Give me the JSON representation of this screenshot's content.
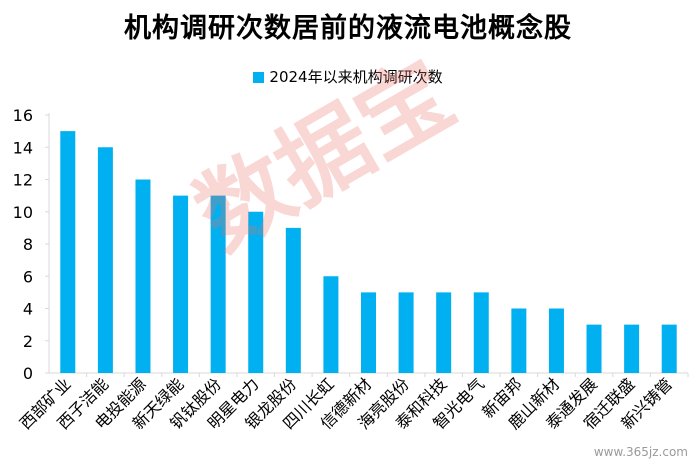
{
  "title": "机构调研次数居前的液流电池概念股",
  "watermark": "数据宝",
  "site": "www.365jz.com",
  "colors": {
    "bar": "#00b0f0",
    "axis": "#d9d9d9",
    "text": "#000000"
  },
  "chart_data": {
    "type": "bar",
    "title": "机构调研次数居前的液流电池概念股",
    "legend_position": "top",
    "grid": false,
    "ylim": [
      0,
      16
    ],
    "yticks": [
      0,
      2,
      4,
      6,
      8,
      10,
      12,
      14,
      16
    ],
    "categories": [
      "西部矿业",
      "西子洁能",
      "电投能源",
      "新天绿能",
      "钒钛股份",
      "明星电力",
      "银龙股份",
      "四川长虹",
      "信德新材",
      "海亮股份",
      "泰和科技",
      "智光电气",
      "新宙邦",
      "鹿山新材",
      "泰通发展",
      "宿迁联盛",
      "新兴铸管"
    ],
    "series": [
      {
        "name": "2024年以来机构调研次数",
        "values": [
          15,
          14,
          12,
          11,
          11,
          10,
          9,
          6,
          5,
          5,
          5,
          5,
          4,
          4,
          3,
          3,
          3
        ]
      }
    ]
  }
}
